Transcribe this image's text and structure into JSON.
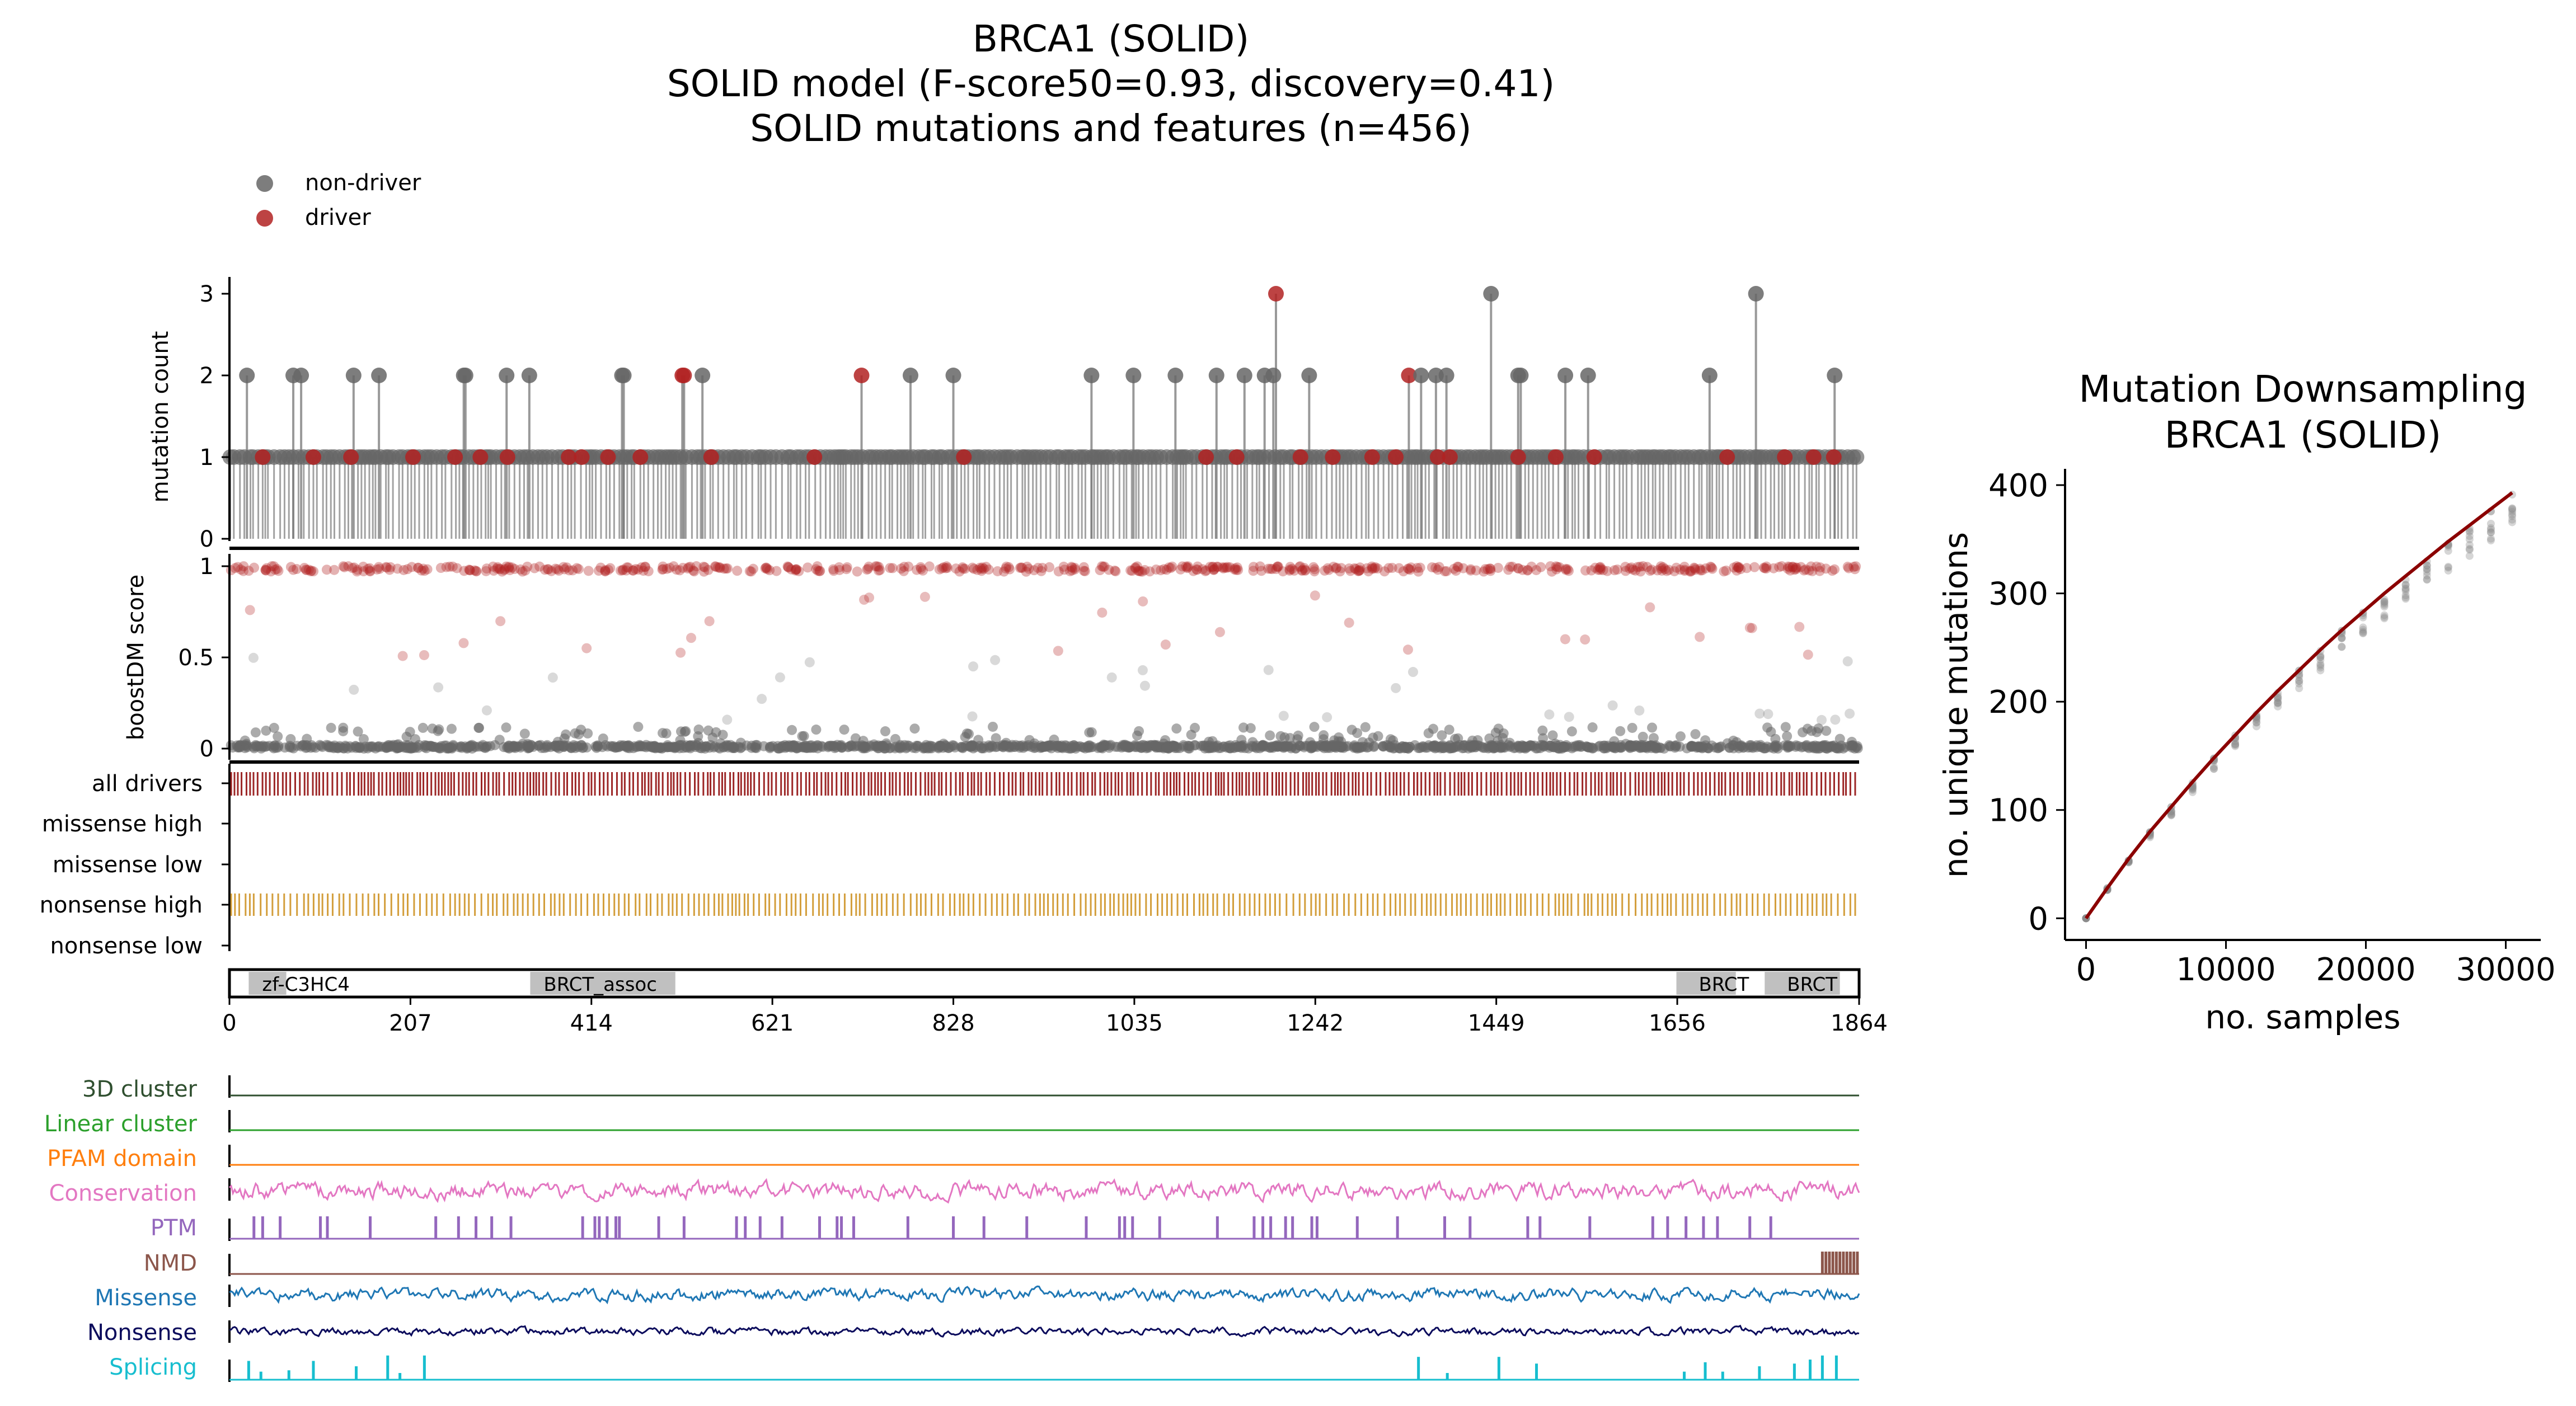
{
  "main_title": {
    "line1": "BRCA1 (SOLID)",
    "line2": "SOLID model (F-score50=0.93, discovery=0.41)",
    "line3": "SOLID mutations and features (n=456)"
  },
  "legend": {
    "items": [
      {
        "label": "non-driver",
        "color": "#666666"
      },
      {
        "label": "driver",
        "color": "#b22222"
      }
    ]
  },
  "colors": {
    "non_driver": "#666666",
    "driver": "#b22222",
    "all_drivers": "#8b0000",
    "nonsense_high": "#c8860a",
    "domain_fill": "#c0c0c0",
    "downsample_line": "#8b0000",
    "track_3d_cluster": "#2f4f2f",
    "track_linear_cluster": "#2ca02c",
    "track_pfam_domain": "#ff7f0e",
    "track_conservation": "#e377c2",
    "track_ptm": "#9467bd",
    "track_nmd": "#8c564b",
    "track_missense": "#1f77b4",
    "track_nonsense": "#0b0b5c",
    "track_splicing": "#17becf"
  },
  "chart_data": [
    {
      "type": "scatter",
      "name": "mutation_lollipop",
      "title": "",
      "xlabel": "",
      "ylabel": "mutation count",
      "xlim": [
        0,
        1864
      ],
      "ylim": [
        0,
        3
      ],
      "yticks": [
        "0",
        "1",
        "2",
        "3"
      ],
      "count_3_positions": [
        1197,
        1443,
        1746
      ],
      "count_3_driver": [
        true,
        false,
        false
      ],
      "count_2_positions": [
        20,
        73,
        82,
        142,
        171,
        268,
        270,
        317,
        343,
        449,
        451,
        518,
        520,
        541,
        723,
        779,
        828,
        986,
        1034,
        1082,
        1129,
        1161,
        1184,
        1194,
        1235,
        1349,
        1363,
        1380,
        1392,
        1474,
        1477,
        1528,
        1554,
        1693,
        1836
      ],
      "count_2_driver": [
        false,
        false,
        false,
        false,
        false,
        false,
        false,
        false,
        false,
        false,
        false,
        true,
        true,
        false,
        true,
        false,
        false,
        false,
        false,
        false,
        false,
        false,
        false,
        false,
        false,
        true,
        false,
        false,
        false,
        false,
        false,
        false,
        false,
        false,
        false
      ],
      "count_1_driver_positions": [
        38,
        96,
        139,
        210,
        258,
        287,
        318,
        388,
        403,
        433,
        470,
        551,
        669,
        840,
        1117,
        1152,
        1225,
        1262,
        1307,
        1334,
        1382,
        1396,
        1474,
        1517,
        1561,
        1713,
        1779,
        1812,
        1835
      ],
      "count_1_density": "dense non-driver coverage along the full protein length 1–1864"
    },
    {
      "type": "scatter",
      "name": "boostdm_score",
      "ylabel": "boostDM score",
      "xlim": [
        0,
        1864
      ],
      "ylim": [
        0,
        1
      ],
      "yticks": [
        "0",
        "0.5",
        "1"
      ],
      "description": "driver predictions cluster near 1, non-driver predictions cluster near 0"
    },
    {
      "type": "heatmap",
      "name": "consequence_tracks",
      "rows": [
        "all drivers",
        "missense high",
        "missense low",
        "nonsense high",
        "nonsense low"
      ],
      "description": "dense tick marks in 'all drivers' (dark red) and 'nonsense high' (orange); other rows empty"
    },
    {
      "type": "bar",
      "name": "pfam_domains",
      "domains": [
        {
          "label": "zf-C3HC4",
          "start": 22,
          "end": 65
        },
        {
          "label": "BRCT_assoc",
          "start": 344,
          "end": 510
        },
        {
          "label": "BRCT",
          "start": 1655,
          "end": 1723
        },
        {
          "label": "BRCT",
          "start": 1756,
          "end": 1842
        }
      ],
      "xticks": [
        "0",
        "207",
        "414",
        "621",
        "828",
        "1035",
        "1242",
        "1449",
        "1656",
        "1864"
      ],
      "xtick_values": [
        0,
        207,
        414,
        621,
        828,
        1035,
        1242,
        1449,
        1656,
        1864
      ]
    },
    {
      "type": "line",
      "name": "feature_tracks",
      "tracks": [
        "3D cluster",
        "Linear cluster",
        "PFAM domain",
        "Conservation",
        "PTM",
        "NMD",
        "Missense",
        "Nonsense",
        "Splicing"
      ],
      "ptm_positions": [
        28,
        38,
        58,
        104,
        112,
        161,
        236,
        262,
        282,
        300,
        322,
        404,
        418,
        423,
        432,
        442,
        446,
        491,
        520,
        580,
        590,
        607,
        632,
        675,
        695,
        700,
        714,
        776,
        828,
        863,
        912,
        980,
        1018,
        1024,
        1033,
        1064,
        1130,
        1172,
        1182,
        1191,
        1208,
        1216,
        1238,
        1244,
        1290,
        1336,
        1390,
        1419,
        1485,
        1499,
        1556,
        1628,
        1645,
        1666,
        1686,
        1702,
        1739,
        1763
      ],
      "nmd_start": 1822,
      "splicing_spikes": [
        {
          "pos": 22,
          "height": 0.7
        },
        {
          "pos": 36,
          "height": 0.3
        },
        {
          "pos": 68,
          "height": 0.35
        },
        {
          "pos": 96,
          "height": 0.7
        },
        {
          "pos": 145,
          "height": 0.5
        },
        {
          "pos": 181,
          "height": 0.9
        },
        {
          "pos": 195,
          "height": 0.25
        },
        {
          "pos": 223,
          "height": 0.9
        },
        {
          "pos": 1360,
          "height": 0.85
        },
        {
          "pos": 1393,
          "height": 0.25
        },
        {
          "pos": 1452,
          "height": 0.85
        },
        {
          "pos": 1495,
          "height": 0.6
        },
        {
          "pos": 1664,
          "height": 0.3
        },
        {
          "pos": 1688,
          "height": 0.65
        },
        {
          "pos": 1708,
          "height": 0.3
        },
        {
          "pos": 1750,
          "height": 0.5
        },
        {
          "pos": 1790,
          "height": 0.6
        },
        {
          "pos": 1808,
          "height": 0.75
        },
        {
          "pos": 1822,
          "height": 0.9
        },
        {
          "pos": 1838,
          "height": 0.9
        }
      ]
    },
    {
      "type": "line",
      "name": "mutation_downsampling",
      "title": "Mutation Downsampling\nBRCA1 (SOLID)",
      "title_line1": "Mutation Downsampling",
      "title_line2": "BRCA1 (SOLID)",
      "xlabel": "no. samples",
      "ylabel": "no. unique mutations",
      "xlim": [
        -1500,
        32500
      ],
      "ylim": [
        -20,
        415
      ],
      "xticks": [
        "0",
        "10000",
        "20000",
        "30000"
      ],
      "xtick_values": [
        0,
        10000,
        20000,
        30000
      ],
      "yticks": [
        "0",
        "100",
        "200",
        "300",
        "400"
      ],
      "ytick_values": [
        0,
        100,
        200,
        300,
        400
      ],
      "x": [
        0,
        1523,
        3046,
        4569,
        6092,
        7615,
        9138,
        10661,
        12184,
        13707,
        15230,
        16753,
        18276,
        19799,
        21322,
        22845,
        24368,
        25891,
        27414,
        28937,
        30460
      ],
      "y": [
        0,
        28,
        55,
        80,
        103,
        126,
        148,
        169,
        190,
        210,
        229,
        248,
        266,
        283,
        300,
        316,
        332,
        348,
        363,
        378,
        393
      ]
    }
  ]
}
